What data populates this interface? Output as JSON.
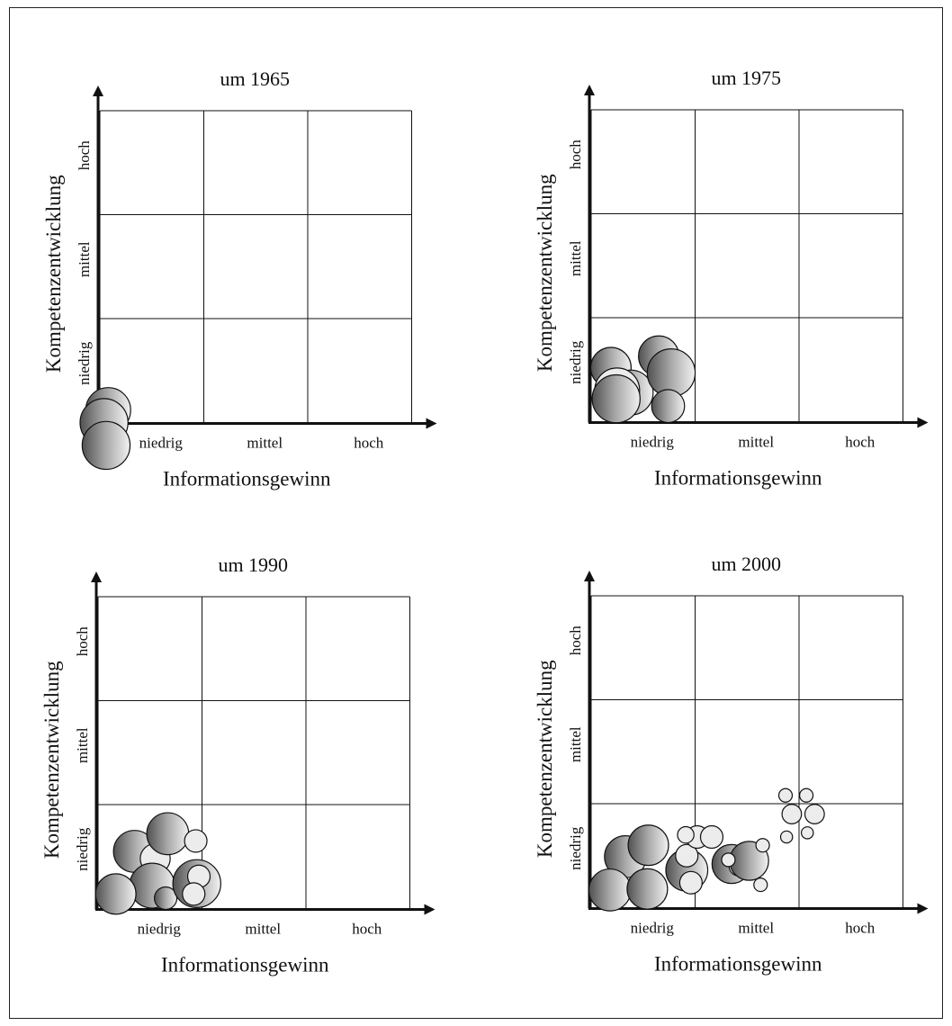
{
  "panels": [
    {
      "title": "um 1965",
      "xlabel": "Informationsgewinn",
      "ylabel": "Kompetenzentwicklung",
      "x_ticks": [
        "niedrig",
        "mittel",
        "hoch"
      ],
      "y_ticks": [
        "niedrig",
        "mittel",
        "hoch"
      ],
      "bubbles": [
        {
          "x": 0.08,
          "y": 0.12,
          "r": 0.3,
          "fill": "grad"
        },
        {
          "x": 0.04,
          "y": 0.0,
          "r": 0.32,
          "fill": "grad"
        },
        {
          "x": 0.06,
          "y": -0.22,
          "r": 0.32,
          "fill": "grad"
        }
      ]
    },
    {
      "title": "um 1975",
      "xlabel": "Informationsgewinn",
      "ylabel": "Kompetenzentwicklung",
      "x_ticks": [
        "niedrig",
        "mittel",
        "hoch"
      ],
      "y_ticks": [
        "niedrig",
        "mittel",
        "hoch"
      ],
      "bubbles": [
        {
          "x": 0.19,
          "y": 0.52,
          "r": 0.27,
          "fill": "grad"
        },
        {
          "x": 0.38,
          "y": 0.28,
          "r": 0.3,
          "fill": "grad"
        },
        {
          "x": 0.25,
          "y": 0.3,
          "r": 0.3,
          "fill": "light"
        },
        {
          "x": 0.65,
          "y": 0.63,
          "r": 0.27,
          "fill": "grad"
        },
        {
          "x": 0.77,
          "y": 0.47,
          "r": 0.32,
          "fill": "grad"
        },
        {
          "x": 0.74,
          "y": 0.15,
          "r": 0.22,
          "fill": "grad"
        },
        {
          "x": 0.24,
          "y": 0.22,
          "r": 0.32,
          "fill": "grad"
        }
      ]
    },
    {
      "title": "um 1990",
      "xlabel": "Informationsgewinn",
      "ylabel": "Kompetenzentwicklung",
      "x_ticks": [
        "niedrig",
        "mittel",
        "hoch"
      ],
      "y_ticks": [
        "niedrig",
        "mittel",
        "hoch"
      ],
      "bubbles": [
        {
          "x": 0.35,
          "y": 0.55,
          "r": 0.28,
          "fill": "grad"
        },
        {
          "x": 0.55,
          "y": 0.48,
          "r": 0.2,
          "fill": "light"
        },
        {
          "x": 0.67,
          "y": 0.72,
          "r": 0.28,
          "fill": "grad"
        },
        {
          "x": 0.94,
          "y": 0.65,
          "r": 0.15,
          "fill": "light"
        },
        {
          "x": 0.52,
          "y": 0.22,
          "r": 0.3,
          "fill": "grad"
        },
        {
          "x": 0.17,
          "y": 0.14,
          "r": 0.27,
          "fill": "grad"
        },
        {
          "x": 0.65,
          "y": 0.1,
          "r": 0.15,
          "fill": "grad"
        },
        {
          "x": 0.95,
          "y": 0.24,
          "r": 0.32,
          "fill": "grad"
        },
        {
          "x": 0.97,
          "y": 0.31,
          "r": 0.15,
          "fill": "light"
        },
        {
          "x": 0.92,
          "y": 0.14,
          "r": 0.15,
          "fill": "light"
        }
      ]
    },
    {
      "title": "um 2000",
      "xlabel": "Informationsgewinn",
      "ylabel": "Kompetenzentwicklung",
      "x_ticks": [
        "niedrig",
        "mittel",
        "hoch"
      ],
      "y_ticks": [
        "niedrig",
        "mittel",
        "hoch"
      ],
      "bubbles": [
        {
          "x": 0.33,
          "y": 0.49,
          "r": 0.28,
          "fill": "grad"
        },
        {
          "x": 0.55,
          "y": 0.6,
          "r": 0.27,
          "fill": "grad"
        },
        {
          "x": 0.18,
          "y": 0.17,
          "r": 0.28,
          "fill": "grad"
        },
        {
          "x": 0.54,
          "y": 0.18,
          "r": 0.27,
          "fill": "grad"
        },
        {
          "x": 0.92,
          "y": 0.36,
          "r": 0.28,
          "fill": "grad"
        },
        {
          "x": 0.96,
          "y": 0.24,
          "r": 0.15,
          "fill": "light"
        },
        {
          "x": 0.92,
          "y": 0.5,
          "r": 0.15,
          "fill": "light"
        },
        {
          "x": 1.02,
          "y": 0.68,
          "r": 0.15,
          "fill": "light"
        },
        {
          "x": 1.16,
          "y": 0.68,
          "r": 0.15,
          "fill": "light"
        },
        {
          "x": 0.91,
          "y": 0.7,
          "r": 0.11,
          "fill": "light"
        },
        {
          "x": 1.35,
          "y": 0.42,
          "r": 0.26,
          "fill": "grad"
        },
        {
          "x": 1.42,
          "y": 0.4,
          "r": 0.13,
          "fill": "light"
        },
        {
          "x": 1.52,
          "y": 0.45,
          "r": 0.26,
          "fill": "grad"
        },
        {
          "x": 1.65,
          "y": 0.6,
          "r": 0.09,
          "fill": "light"
        },
        {
          "x": 1.63,
          "y": 0.22,
          "r": 0.09,
          "fill": "light"
        },
        {
          "x": 1.32,
          "y": 0.46,
          "r": 0.09,
          "fill": "light"
        },
        {
          "x": 1.87,
          "y": 1.08,
          "r": 0.09,
          "fill": "light"
        },
        {
          "x": 2.07,
          "y": 1.08,
          "r": 0.09,
          "fill": "light"
        },
        {
          "x": 1.93,
          "y": 0.9,
          "r": 0.13,
          "fill": "light"
        },
        {
          "x": 2.15,
          "y": 0.9,
          "r": 0.13,
          "fill": "light"
        },
        {
          "x": 1.88,
          "y": 0.68,
          "r": 0.08,
          "fill": "light"
        },
        {
          "x": 2.08,
          "y": 0.72,
          "r": 0.08,
          "fill": "light"
        }
      ]
    }
  ]
}
